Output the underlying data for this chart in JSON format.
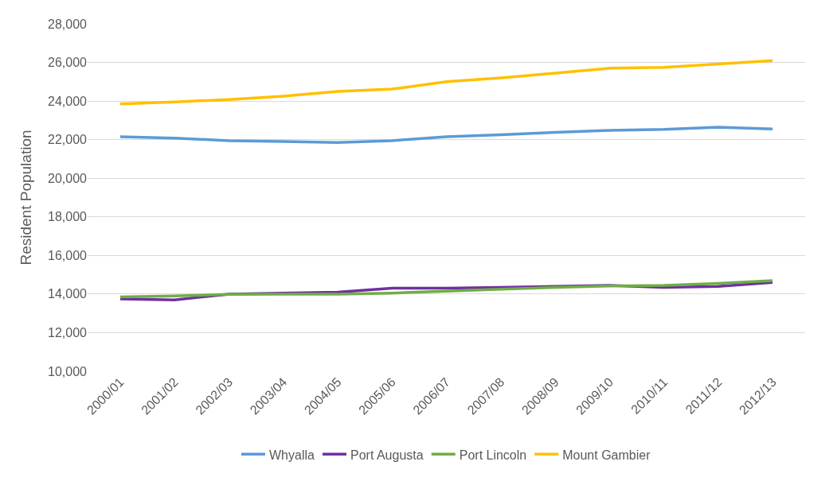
{
  "chart_data": {
    "type": "line",
    "ylabel": "Resident Population",
    "categories": [
      "2000/01",
      "2001/02",
      "2002/03",
      "2003/04",
      "2004/05",
      "2005/06",
      "2006/07",
      "2007/08",
      "2008/09",
      "2009/10",
      "2010/11",
      "2011/12",
      "2012/13"
    ],
    "series": [
      {
        "name": "Whyalla",
        "color": "#5b9bd5",
        "values": [
          22150,
          22080,
          21950,
          21900,
          21850,
          21950,
          22150,
          22250,
          22380,
          22480,
          22530,
          22650,
          22550
        ]
      },
      {
        "name": "Port Augusta",
        "color": "#7030a0",
        "values": [
          13750,
          13700,
          14000,
          14050,
          14100,
          14300,
          14300,
          14350,
          14400,
          14450,
          14350,
          14400,
          14600
        ]
      },
      {
        "name": "Port Lincoln",
        "color": "#70ad47",
        "values": [
          13850,
          13900,
          13980,
          14000,
          14000,
          14050,
          14150,
          14250,
          14350,
          14420,
          14450,
          14550,
          14700
        ]
      },
      {
        "name": "Mount Gambier",
        "color": "#ffc000",
        "values": [
          23850,
          23950,
          24080,
          24250,
          24500,
          24620,
          25000,
          25200,
          25450,
          25700,
          25750,
          25920,
          26100
        ]
      }
    ],
    "ylim": [
      10000,
      28000
    ],
    "yticks": [
      {
        "value": 10000,
        "label": "10,000"
      },
      {
        "value": 12000,
        "label": "12,000"
      },
      {
        "value": 14000,
        "label": "14,000"
      },
      {
        "value": 16000,
        "label": "16,000"
      },
      {
        "value": 18000,
        "label": "18,000"
      },
      {
        "value": 20000,
        "label": "20,000"
      },
      {
        "value": 22000,
        "label": "22,000"
      },
      {
        "value": 24000,
        "label": "24,000"
      },
      {
        "value": 26000,
        "label": "26,000"
      },
      {
        "value": 28000,
        "label": "28,000"
      }
    ],
    "grid": "y",
    "legend": "bottom",
    "line_style": "solid",
    "marker": "none"
  }
}
